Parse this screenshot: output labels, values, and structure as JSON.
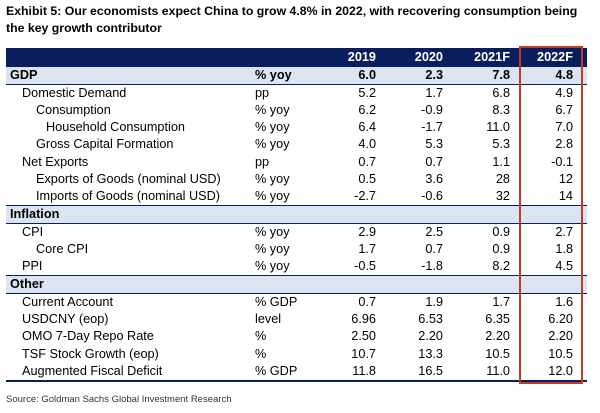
{
  "title": "Exhibit 5: Our economists expect China to grow 4.8% in 2022, with recovering consumption being the key growth contributor",
  "table": {
    "headers": [
      "",
      "",
      "2019",
      "2020",
      "2021F",
      "2022F"
    ],
    "rows": [
      {
        "label": "GDP",
        "unit": "% yoy",
        "v": [
          "6.0",
          "2.3",
          "7.8",
          "4.8"
        ]
      },
      {
        "label": "Domestic Demand",
        "unit": "pp",
        "v": [
          "5.2",
          "1.7",
          "6.8",
          "4.9"
        ]
      },
      {
        "label": "Consumption",
        "unit": "% yoy",
        "v": [
          "6.2",
          "-0.9",
          "8.3",
          "6.7"
        ]
      },
      {
        "label": "Household Consumption",
        "unit": "% yoy",
        "v": [
          "6.4",
          "-1.7",
          "11.0",
          "7.0"
        ]
      },
      {
        "label": "Gross Capital Formation",
        "unit": "% yoy",
        "v": [
          "4.0",
          "5.3",
          "5.3",
          "2.8"
        ]
      },
      {
        "label": "Net Exports",
        "unit": "pp",
        "v": [
          "0.7",
          "0.7",
          "1.1",
          "-0.1"
        ]
      },
      {
        "label": "Exports of Goods (nominal USD)",
        "unit": "% yoy",
        "v": [
          "0.5",
          "3.6",
          "28",
          "12"
        ]
      },
      {
        "label": "Imports of Goods (nominal USD)",
        "unit": "% yoy",
        "v": [
          "-2.7",
          "-0.6",
          "32",
          "14"
        ]
      },
      {
        "label": "Inflation"
      },
      {
        "label": "CPI",
        "unit": "% yoy",
        "v": [
          "2.9",
          "2.5",
          "0.9",
          "2.7"
        ]
      },
      {
        "label": "Core CPI",
        "unit": "% yoy",
        "v": [
          "1.7",
          "0.7",
          "0.9",
          "1.8"
        ]
      },
      {
        "label": "PPI",
        "unit": "% yoy",
        "v": [
          "-0.5",
          "-1.8",
          "8.2",
          "4.5"
        ]
      },
      {
        "label": "Other"
      },
      {
        "label": "Current Account",
        "unit": "% GDP",
        "v": [
          "0.7",
          "1.9",
          "1.7",
          "1.6"
        ]
      },
      {
        "label": "USDCNY (eop)",
        "unit": "level",
        "v": [
          "6.96",
          "6.53",
          "6.35",
          "6.20"
        ]
      },
      {
        "label": "OMO 7-Day Repo Rate",
        "unit": "%",
        "v": [
          "2.50",
          "2.20",
          "2.20",
          "2.20"
        ]
      },
      {
        "label": "TSF Stock Growth (eop)",
        "unit": "%",
        "v": [
          "10.7",
          "13.3",
          "10.5",
          "10.5"
        ]
      },
      {
        "label": "Augmented Fiscal Deficit",
        "unit": "% GDP",
        "v": [
          "11.8",
          "16.5",
          "11.0",
          "12.0"
        ]
      }
    ]
  },
  "source": "Source: Goldman Sachs Global Investment Research"
}
